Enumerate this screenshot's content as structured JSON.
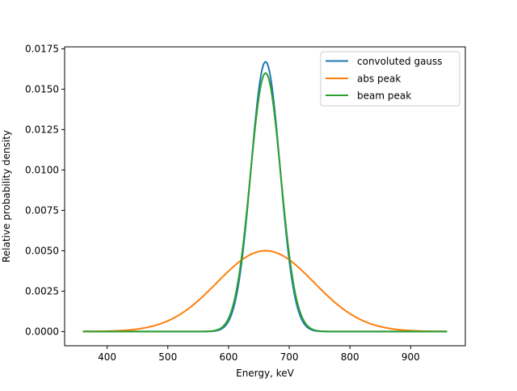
{
  "chart_data": {
    "type": "line",
    "title": "",
    "xlabel": "Energy, keV",
    "ylabel": "Relative probability density",
    "xlim": [
      330,
      990
    ],
    "ylim": [
      -0.00088,
      0.01762
    ],
    "xticks": [
      400,
      500,
      600,
      700,
      800,
      900
    ],
    "yticks": [
      0.0,
      0.0025,
      0.005,
      0.0075,
      0.01,
      0.0125,
      0.015,
      0.0175
    ],
    "ytick_labels": [
      "0.0000",
      "0.0025",
      "0.0050",
      "0.0075",
      "0.0100",
      "0.0125",
      "0.0150",
      "0.0175"
    ],
    "grid": false,
    "legend_position": "top-right",
    "series": [
      {
        "name": "convoluted gauss",
        "color": "#1f77b4",
        "gaussian": {
          "mean": 661,
          "sigma": 23.9,
          "peak": 0.0167
        },
        "x_range": [
          360,
          960
        ]
      },
      {
        "name": "abs peak",
        "color": "#ff7f0e",
        "gaussian": {
          "mean": 661,
          "sigma": 80,
          "peak": 0.005
        },
        "x_range": [
          360,
          960
        ]
      },
      {
        "name": "beam peak",
        "color": "#2ca02c",
        "gaussian": {
          "mean": 661,
          "sigma": 25,
          "peak": 0.016
        },
        "x_range": [
          360,
          960
        ]
      }
    ]
  }
}
